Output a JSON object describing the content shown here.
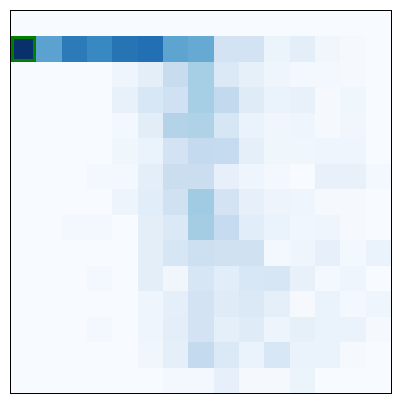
{
  "board": {
    "rows": 15,
    "cols": 15,
    "selected": {
      "row": 1,
      "col": 0
    },
    "colors": [
      [
        "#f7fbff",
        "#f7fbff",
        "#f7fbff",
        "#f7fbff",
        "#f7fbff",
        "#f7fbff",
        "#f7fbff",
        "#f7fbff",
        "#f7fbff",
        "#f7fbff",
        "#f7fbff",
        "#f7fbff",
        "#f7fbff",
        "#f7fbff",
        "#f7fbff"
      ],
      [
        "#08306b",
        "#5ba2d0",
        "#2c7bb8",
        "#3888c1",
        "#2774b5",
        "#2270b3",
        "#5ea4d1",
        "#66aad4",
        "#d3e3f3",
        "#d3e3f3",
        "#ebf3fb",
        "#e3eef8",
        "#f0f6fc",
        "#f5f9fe",
        "#f7fbff"
      ],
      [
        "#f7fbff",
        "#f7fbff",
        "#f7fbff",
        "#f7fbff",
        "#eef5fc",
        "#e3eef8",
        "#c7dcef",
        "#a6cee4",
        "#dbe9f6",
        "#e6f0f9",
        "#eef5fc",
        "#f2f8fd",
        "#f2f8fd",
        "#f5f9fe",
        "#f7fbff"
      ],
      [
        "#f7fbff",
        "#f7fbff",
        "#f7fbff",
        "#f7fbff",
        "#e8f1fa",
        "#d8e7f5",
        "#cfe1f2",
        "#a6cee4",
        "#c2d9ee",
        "#dfebf7",
        "#eaf3fb",
        "#e8f1fa",
        "#f5f9fe",
        "#eff6fc",
        "#f7fbff"
      ],
      [
        "#f7fbff",
        "#f7fbff",
        "#f7fbff",
        "#f7fbff",
        "#f2f8fd",
        "#e2edf8",
        "#b4d3e9",
        "#b0d2e7",
        "#d6e6f4",
        "#eaf3fb",
        "#f0f6fc",
        "#eef5fc",
        "#f5f9fe",
        "#f0f6fc",
        "#f7fbff"
      ],
      [
        "#f7fbff",
        "#f7fbff",
        "#f7fbff",
        "#f7fbff",
        "#eff6fc",
        "#eaf3fb",
        "#d3e3f3",
        "#c4daee",
        "#c6dbef",
        "#e4eff9",
        "#eff6fc",
        "#eff6fc",
        "#eef5fc",
        "#eef5fc",
        "#f7fbff"
      ],
      [
        "#f7fbff",
        "#f7fbff",
        "#f7fbff",
        "#f3f8fe",
        "#f3f8fe",
        "#e3eef8",
        "#cadef0",
        "#cadef0",
        "#e7f0fa",
        "#eef5fc",
        "#f2f8fd",
        "#f7fbff",
        "#e8f1fa",
        "#e8f1fa",
        "#f3f8fe"
      ],
      [
        "#f7fbff",
        "#f7fbff",
        "#f7fbff",
        "#f7fbff",
        "#edf4fc",
        "#e1edf8",
        "#d0e1f2",
        "#a0cbe2",
        "#d3e3f3",
        "#e7f0fa",
        "#edf4fc",
        "#eef5fc",
        "#f5f9fe",
        "#f5f9fe",
        "#f7fbff"
      ],
      [
        "#f7fbff",
        "#f7fbff",
        "#f2f8fd",
        "#f2f8fd",
        "#f7fbff",
        "#e3eef8",
        "#dbe9f6",
        "#a4cce3",
        "#c6dbef",
        "#e1edf8",
        "#eaf3fb",
        "#eff6fc",
        "#eef5fc",
        "#f5f9fe",
        "#f7fbff"
      ],
      [
        "#f7fbff",
        "#f7fbff",
        "#f7fbff",
        "#f7fbff",
        "#f7fbff",
        "#e3eef8",
        "#d6e6f4",
        "#cde0f1",
        "#d0e1f2",
        "#d0e1f2",
        "#f2f8fd",
        "#eef5fc",
        "#e7f0fa",
        "#f2f8fd",
        "#eaf3fb"
      ],
      [
        "#f7fbff",
        "#f7fbff",
        "#f7fbff",
        "#f2f8fd",
        "#f7fbff",
        "#e3eef8",
        "#f0f6fc",
        "#d6e6f4",
        "#e1edf8",
        "#d8e7f5",
        "#d6e6f4",
        "#e8f1fa",
        "#f2f8fd",
        "#eef5fc",
        "#f7fbff"
      ],
      [
        "#f7fbff",
        "#f7fbff",
        "#f7fbff",
        "#f7fbff",
        "#f7fbff",
        "#eef5fc",
        "#e4eff9",
        "#d3e3f3",
        "#dfebf7",
        "#dbe9f6",
        "#e4eff9",
        "#f5f9fe",
        "#eaf3fb",
        "#f2f8fd",
        "#eef5fc"
      ],
      [
        "#f7fbff",
        "#f7fbff",
        "#f7fbff",
        "#f2f8fd",
        "#f7fbff",
        "#eef5fc",
        "#e3eef8",
        "#d3e3f3",
        "#e4eff9",
        "#dfebf7",
        "#edf4fc",
        "#e6f0f9",
        "#eaf3fb",
        "#eaf3fb",
        "#f5f9fe"
      ],
      [
        "#f7fbff",
        "#f7fbff",
        "#f7fbff",
        "#f7fbff",
        "#f7fbff",
        "#f0f6fc",
        "#e4eff9",
        "#c4daee",
        "#dbe9f6",
        "#eaf3fb",
        "#d8e7f5",
        "#eaf3fb",
        "#eaf3fb",
        "#f5f9fe",
        "#f7fbff"
      ],
      [
        "#f7fbff",
        "#f7fbff",
        "#f7fbff",
        "#f7fbff",
        "#f7fbff",
        "#f7fbff",
        "#f3f8fe",
        "#f2f8fd",
        "#e7f0fa",
        "#f5f9fe",
        "#f5f9fe",
        "#ebf3fb",
        "#f7fbff",
        "#f7fbff",
        "#f7fbff"
      ]
    ]
  }
}
